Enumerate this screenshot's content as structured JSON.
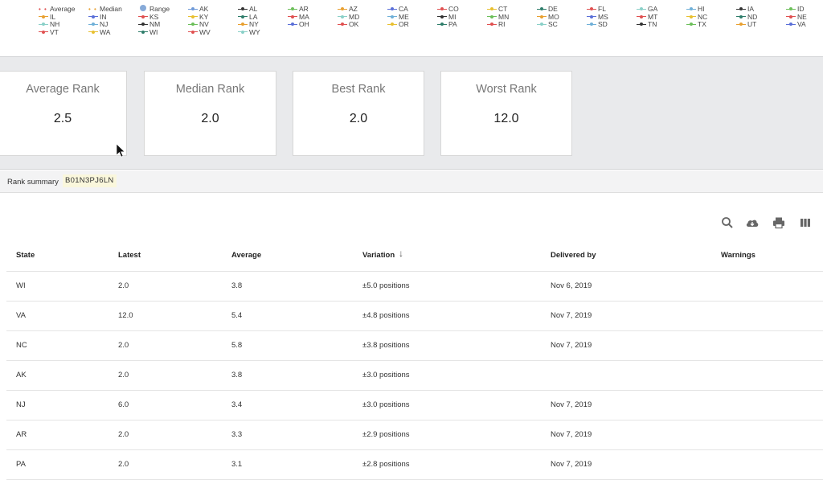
{
  "legend": {
    "items": [
      {
        "label": "Average",
        "type": "dots",
        "color": "#e05050"
      },
      {
        "label": "Median",
        "type": "dots",
        "color": "#e8a030"
      },
      {
        "label": "Range",
        "type": "circle",
        "color": "#87aad8"
      },
      {
        "label": "AK",
        "color": "#6f9ad8"
      },
      {
        "label": "AL",
        "color": "#333333"
      },
      {
        "label": "AR",
        "color": "#6cbf5a"
      },
      {
        "label": "AZ",
        "color": "#e8a030"
      },
      {
        "label": "CA",
        "color": "#5a6fd8"
      },
      {
        "label": "CO",
        "color": "#e05050"
      },
      {
        "label": "CT",
        "color": "#e8c030"
      },
      {
        "label": "DE",
        "color": "#2e7d6a"
      },
      {
        "label": "FL",
        "color": "#e05050"
      },
      {
        "label": "GA",
        "color": "#8ad0c8"
      },
      {
        "label": "HI",
        "color": "#6fb0d8"
      },
      {
        "label": "IA",
        "color": "#333333"
      },
      {
        "label": "ID",
        "color": "#6cbf5a"
      },
      {
        "label": "IL",
        "color": "#e8a030"
      },
      {
        "label": "IN",
        "color": "#5a6fd8"
      },
      {
        "label": "KS",
        "color": "#e05050"
      },
      {
        "label": "KY",
        "color": "#e8c030"
      },
      {
        "label": "LA",
        "color": "#2e7d6a"
      },
      {
        "label": "MA",
        "color": "#e05050"
      },
      {
        "label": "MD",
        "color": "#8ad0c8"
      },
      {
        "label": "ME",
        "color": "#6fb0d8"
      },
      {
        "label": "MI",
        "color": "#333333"
      },
      {
        "label": "MN",
        "color": "#6cbf5a"
      },
      {
        "label": "MO",
        "color": "#e8a030"
      },
      {
        "label": "MS",
        "color": "#5a6fd8"
      },
      {
        "label": "MT",
        "color": "#e05050"
      },
      {
        "label": "NC",
        "color": "#e8c030"
      },
      {
        "label": "ND",
        "color": "#2e7d6a"
      },
      {
        "label": "NE",
        "color": "#e05050"
      },
      {
        "label": "NH",
        "color": "#8ad0c8"
      },
      {
        "label": "NJ",
        "color": "#6fb0d8"
      },
      {
        "label": "NM",
        "color": "#333333"
      },
      {
        "label": "NV",
        "color": "#6cbf5a"
      },
      {
        "label": "NY",
        "color": "#e8a030"
      },
      {
        "label": "OH",
        "color": "#5a6fd8"
      },
      {
        "label": "OK",
        "color": "#e05050"
      },
      {
        "label": "OR",
        "color": "#e8c030"
      },
      {
        "label": "PA",
        "color": "#2e7d6a"
      },
      {
        "label": "RI",
        "color": "#e05050"
      },
      {
        "label": "SC",
        "color": "#8ad0c8"
      },
      {
        "label": "SD",
        "color": "#6fb0d8"
      },
      {
        "label": "TN",
        "color": "#333333"
      },
      {
        "label": "TX",
        "color": "#6cbf5a"
      },
      {
        "label": "UT",
        "color": "#e8a030"
      },
      {
        "label": "VA",
        "color": "#5a6fd8"
      },
      {
        "label": "VT",
        "color": "#e05050"
      },
      {
        "label": "WA",
        "color": "#e8c030"
      },
      {
        "label": "WI",
        "color": "#2e7d6a"
      },
      {
        "label": "WV",
        "color": "#e05050"
      },
      {
        "label": "WY",
        "color": "#8ad0c8"
      }
    ]
  },
  "cards": [
    {
      "title": "Average Rank",
      "value": "2.5"
    },
    {
      "title": "Median Rank",
      "value": "2.0"
    },
    {
      "title": "Best Rank",
      "value": "2.0"
    },
    {
      "title": "Worst Rank",
      "value": "12.0"
    }
  ],
  "summary": {
    "label": "Rank summary",
    "code": "B01N3PJ6LN"
  },
  "toolbar": {
    "icons": [
      "search-icon",
      "cloud-download-icon",
      "print-icon",
      "columns-icon"
    ]
  },
  "table": {
    "headers": {
      "state": "State",
      "latest": "Latest",
      "average": "Average",
      "variation": "Variation",
      "delivered": "Delivered by",
      "warnings": "Warnings"
    },
    "sort_icon": "↓",
    "rows": [
      {
        "state": "WI",
        "latest": "2.0",
        "average": "3.8",
        "variation": "±5.0 positions",
        "delivered": "Nov 6, 2019",
        "warnings": ""
      },
      {
        "state": "VA",
        "latest": "12.0",
        "average": "5.4",
        "variation": "±4.8 positions",
        "delivered": "Nov 7, 2019",
        "warnings": ""
      },
      {
        "state": "NC",
        "latest": "2.0",
        "average": "5.8",
        "variation": "±3.8 positions",
        "delivered": "Nov 7, 2019",
        "warnings": ""
      },
      {
        "state": "AK",
        "latest": "2.0",
        "average": "3.8",
        "variation": "±3.0 positions",
        "delivered": "",
        "warnings": ""
      },
      {
        "state": "NJ",
        "latest": "6.0",
        "average": "3.4",
        "variation": "±3.0 positions",
        "delivered": "Nov 7, 2019",
        "warnings": ""
      },
      {
        "state": "AR",
        "latest": "2.0",
        "average": "3.3",
        "variation": "±2.9 positions",
        "delivered": "Nov 7, 2019",
        "warnings": ""
      },
      {
        "state": "PA",
        "latest": "2.0",
        "average": "3.1",
        "variation": "±2.8 positions",
        "delivered": "Nov 7, 2019",
        "warnings": ""
      }
    ]
  }
}
